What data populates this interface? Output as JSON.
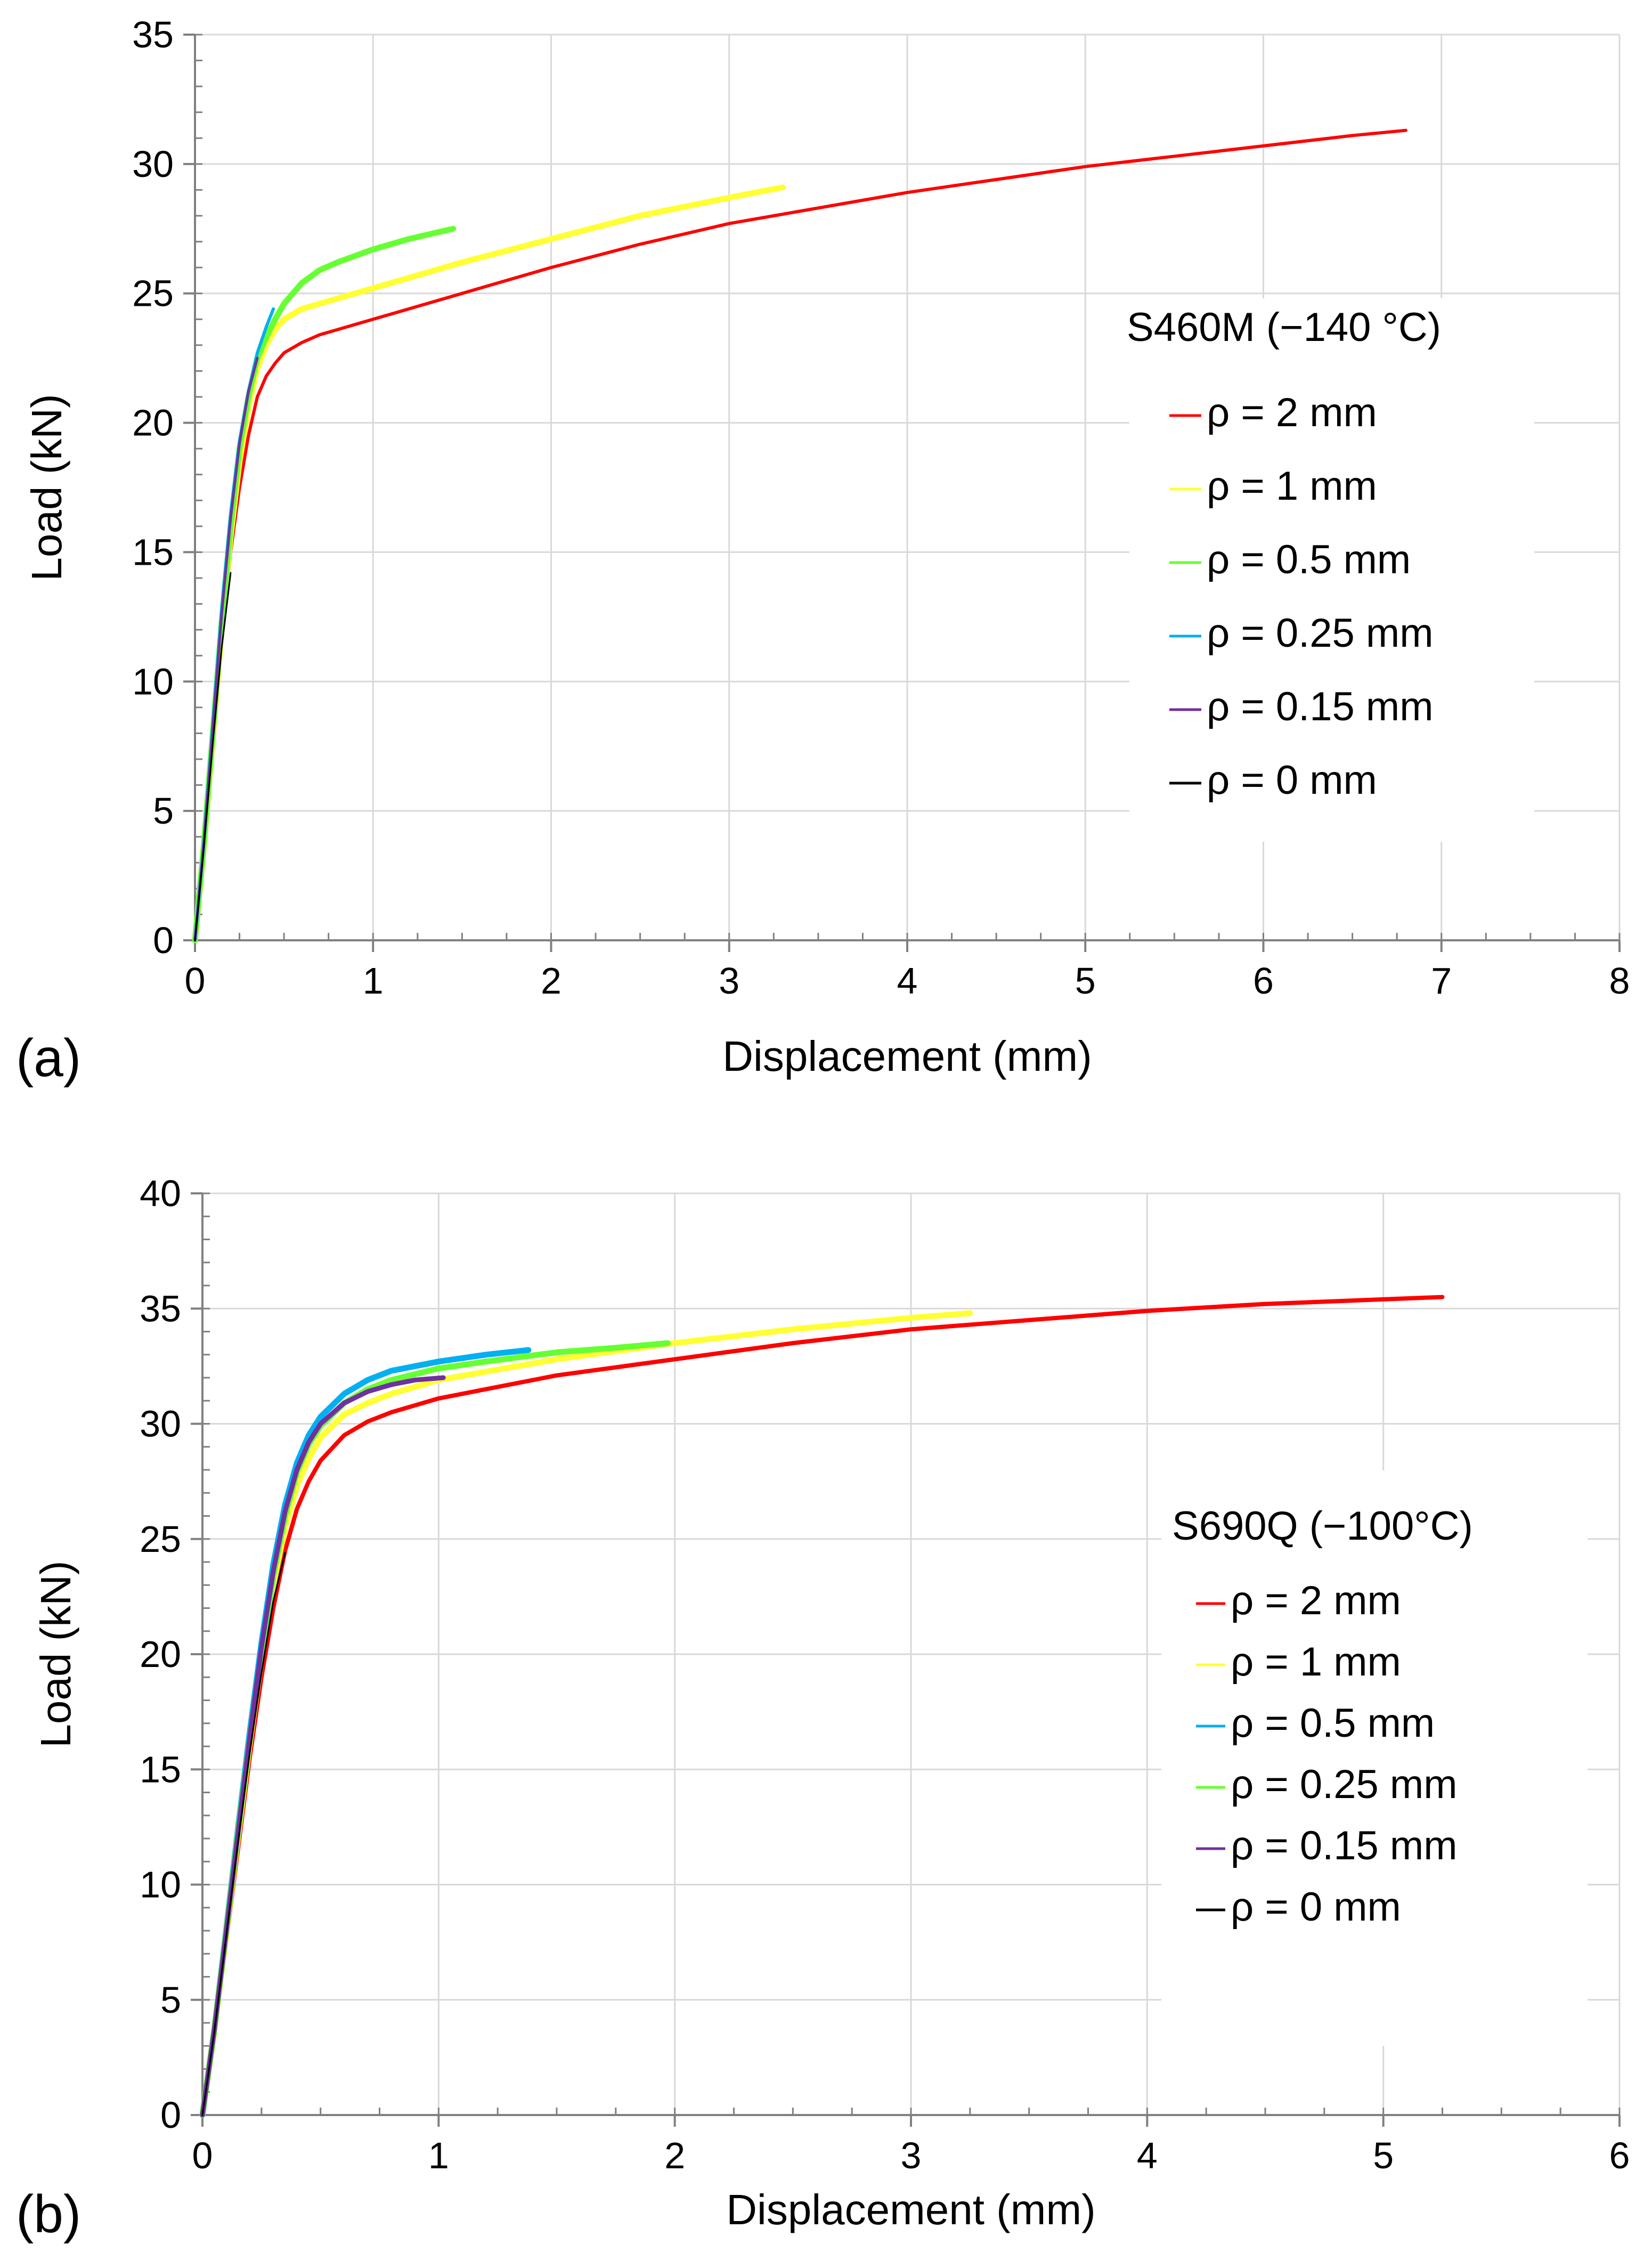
{
  "chart_data": [
    {
      "type": "line",
      "panel_label": "(a)",
      "title": "",
      "xlabel": "Displacement (mm)",
      "ylabel": "Load (kN)",
      "xlim": [
        0,
        8
      ],
      "ylim": [
        0,
        35
      ],
      "x_ticks": [
        0,
        1,
        2,
        3,
        4,
        5,
        6,
        7,
        8
      ],
      "y_ticks": [
        0,
        5,
        10,
        15,
        20,
        25,
        30,
        35
      ],
      "grid": true,
      "legend_title": "S460M (−140 °C)",
      "legend_position": "right",
      "series": [
        {
          "name": "ρ = 2 mm",
          "color": "#ff0000",
          "width": 6,
          "x": [
            0,
            0.05,
            0.1,
            0.15,
            0.2,
            0.25,
            0.3,
            0.35,
            0.4,
            0.45,
            0.5,
            0.55,
            0.6,
            0.7,
            0.8,
            1.0,
            1.5,
            2.0,
            2.5,
            3.0,
            3.5,
            4.0,
            4.5,
            5.0,
            5.5,
            6.0,
            6.5,
            6.8
          ],
          "y": [
            0,
            3.5,
            7.5,
            11.5,
            15.0,
            17.5,
            19.5,
            21.0,
            21.8,
            22.3,
            22.7,
            22.9,
            23.1,
            23.4,
            23.6,
            24.0,
            25.0,
            26.0,
            26.9,
            27.7,
            28.3,
            28.9,
            29.4,
            29.9,
            30.3,
            30.7,
            31.1,
            31.3
          ]
        },
        {
          "name": "ρ = 1 mm",
          "color": "#ffff33",
          "width": 11,
          "x": [
            0,
            0.05,
            0.1,
            0.15,
            0.2,
            0.25,
            0.3,
            0.35,
            0.4,
            0.45,
            0.5,
            0.6,
            0.7,
            0.8,
            1.0,
            1.5,
            2.0,
            2.5,
            3.0,
            3.3
          ],
          "y": [
            0,
            3.6,
            7.8,
            12.0,
            15.6,
            18.5,
            20.6,
            22.1,
            23.0,
            23.6,
            24.0,
            24.4,
            24.6,
            24.8,
            25.2,
            26.2,
            27.1,
            28.0,
            28.7,
            29.1
          ]
        },
        {
          "name": "ρ = 0.5 mm",
          "color": "#66ff33",
          "width": 11,
          "x": [
            0,
            0.05,
            0.1,
            0.15,
            0.2,
            0.25,
            0.3,
            0.35,
            0.4,
            0.45,
            0.5,
            0.6,
            0.7,
            0.8,
            1.0,
            1.2,
            1.45
          ],
          "y": [
            0,
            3.7,
            8.0,
            12.3,
            16.0,
            19.0,
            21.0,
            22.5,
            23.3,
            24.0,
            24.6,
            25.4,
            25.9,
            26.2,
            26.7,
            27.1,
            27.5
          ]
        },
        {
          "name": "ρ = 0.25 mm",
          "color": "#00b0f0",
          "width": 6,
          "x": [
            0,
            0.05,
            0.1,
            0.15,
            0.2,
            0.25,
            0.3,
            0.35,
            0.4,
            0.44
          ],
          "y": [
            0,
            3.8,
            8.3,
            12.8,
            16.5,
            19.3,
            21.2,
            22.7,
            23.7,
            24.4
          ]
        },
        {
          "name": "ρ = 0.15 mm",
          "color": "#7030a0",
          "width": 5,
          "x": [
            0,
            0.05,
            0.1,
            0.15,
            0.2,
            0.25,
            0.3,
            0.35
          ],
          "y": [
            0,
            3.8,
            8.2,
            12.6,
            16.3,
            19.2,
            21.2,
            22.5
          ]
        },
        {
          "name": "ρ = 0 mm",
          "color": "#000000",
          "width": 3,
          "x": [
            0,
            0.05,
            0.1,
            0.15,
            0.2
          ],
          "y": [
            0,
            3.6,
            7.6,
            11.3,
            14.2
          ]
        }
      ]
    },
    {
      "type": "line",
      "panel_label": "(b)",
      "title": "",
      "xlabel": "Displacement (mm)",
      "ylabel": "Load (kN)",
      "xlim": [
        0,
        6
      ],
      "ylim": [
        0,
        40
      ],
      "x_ticks": [
        0,
        1,
        2,
        3,
        4,
        5,
        6
      ],
      "y_ticks": [
        0,
        5,
        10,
        15,
        20,
        25,
        30,
        35,
        40
      ],
      "grid": true,
      "legend_title": "S690Q (−100°C)",
      "legend_position": "right",
      "series": [
        {
          "name": "ρ = 2 mm",
          "color": "#ff0000",
          "width": 8,
          "x": [
            0,
            0.05,
            0.1,
            0.15,
            0.2,
            0.25,
            0.3,
            0.35,
            0.4,
            0.45,
            0.5,
            0.6,
            0.7,
            0.8,
            1.0,
            1.5,
            2.0,
            2.5,
            3.0,
            3.5,
            4.0,
            4.5,
            5.0,
            5.25
          ],
          "y": [
            0,
            3.5,
            7.5,
            11.5,
            15.5,
            19.0,
            22.0,
            24.5,
            26.3,
            27.5,
            28.4,
            29.5,
            30.1,
            30.5,
            31.1,
            32.1,
            32.8,
            33.5,
            34.1,
            34.5,
            34.9,
            35.2,
            35.4,
            35.5
          ]
        },
        {
          "name": "ρ = 1 mm",
          "color": "#ffff33",
          "width": 11,
          "x": [
            0,
            0.05,
            0.1,
            0.15,
            0.2,
            0.25,
            0.3,
            0.35,
            0.4,
            0.45,
            0.5,
            0.6,
            0.7,
            0.8,
            1.0,
            1.5,
            2.0,
            2.5,
            3.0,
            3.25
          ],
          "y": [
            0,
            3.6,
            7.8,
            12.0,
            16.1,
            19.8,
            23.0,
            25.5,
            27.3,
            28.5,
            29.4,
            30.4,
            30.9,
            31.3,
            31.9,
            32.8,
            33.5,
            34.1,
            34.6,
            34.8
          ]
        },
        {
          "name": "ρ = 0.5 mm",
          "color": "#00b0f0",
          "width": 11,
          "x": [
            0,
            0.05,
            0.1,
            0.15,
            0.2,
            0.25,
            0.3,
            0.35,
            0.4,
            0.45,
            0.5,
            0.6,
            0.7,
            0.8,
            1.0,
            1.2,
            1.38
          ],
          "y": [
            0,
            3.7,
            8.0,
            12.4,
            16.6,
            20.5,
            23.9,
            26.5,
            28.3,
            29.5,
            30.3,
            31.3,
            31.9,
            32.3,
            32.7,
            33.0,
            33.2
          ]
        },
        {
          "name": "ρ = 0.25 mm",
          "color": "#66ff33",
          "width": 11,
          "x": [
            0,
            0.05,
            0.1,
            0.15,
            0.2,
            0.25,
            0.3,
            0.35,
            0.4,
            0.45,
            0.5,
            0.6,
            0.7,
            0.8,
            1.0,
            1.2,
            1.5,
            1.75,
            1.97
          ],
          "y": [
            0,
            3.7,
            7.9,
            12.2,
            16.3,
            20.1,
            23.4,
            26.0,
            27.9,
            29.1,
            29.9,
            30.9,
            31.5,
            31.9,
            32.4,
            32.7,
            33.1,
            33.3,
            33.5
          ]
        },
        {
          "name": "ρ = 0.15 mm",
          "color": "#7030a0",
          "width": 9,
          "x": [
            0,
            0.05,
            0.1,
            0.15,
            0.2,
            0.25,
            0.3,
            0.35,
            0.4,
            0.45,
            0.5,
            0.6,
            0.7,
            0.8,
            0.9,
            1.02
          ],
          "y": [
            0,
            3.7,
            7.9,
            12.2,
            16.4,
            20.3,
            23.6,
            26.2,
            28.0,
            29.2,
            30.0,
            30.9,
            31.4,
            31.7,
            31.9,
            32.0
          ]
        },
        {
          "name": "ρ = 0 mm",
          "color": "#000000",
          "width": 3,
          "x": [
            0,
            0.05,
            0.1,
            0.15,
            0.2,
            0.25,
            0.3,
            0.35
          ],
          "y": [
            0,
            3.6,
            7.7,
            11.8,
            15.7,
            19.2,
            22.3,
            24.4
          ]
        }
      ]
    }
  ]
}
